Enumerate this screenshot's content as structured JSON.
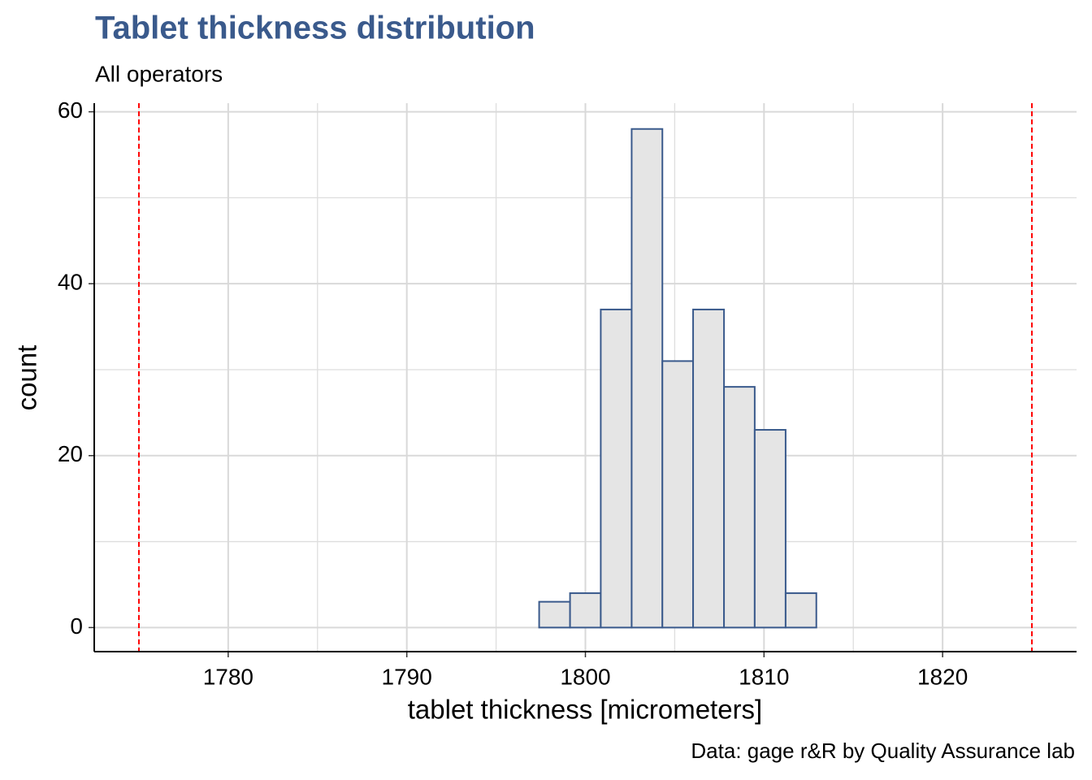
{
  "chart_data": {
    "type": "histogram",
    "title": "Tablet thickness distribution",
    "subtitle": "All operators",
    "x_label": "tablet thickness [micrometers]",
    "y_label": "count",
    "caption": "Data: gage r&R by Quality Assurance lab",
    "bins": [
      1775,
      1776.72,
      1778.45,
      1780.17,
      1781.9,
      1783.62,
      1785.34,
      1787.07,
      1788.79,
      1790.52,
      1792.24,
      1793.97,
      1795.69,
      1797.41,
      1799.14,
      1800.86,
      1802.59,
      1804.31,
      1806.03,
      1807.76,
      1809.48,
      1811.21,
      1812.93,
      1814.66,
      1816.38,
      1818.1,
      1819.83,
      1821.55,
      1823.28,
      1825
    ],
    "values": [
      0,
      0,
      0,
      0,
      0,
      0,
      0,
      0,
      0,
      0,
      0,
      0,
      0,
      3,
      4,
      37,
      58,
      31,
      37,
      28,
      23,
      4,
      0,
      0,
      0,
      0,
      0,
      0,
      0
    ],
    "color": "#e5e5e5",
    "edge_color": "#3a5a8c",
    "title_color": "#3a5a8c",
    "vlines": [
      1775,
      1825
    ],
    "vline_color": "#ff0000",
    "xlim": [
      1772.5,
      1827.5
    ],
    "ylim": [
      -2.8,
      61
    ],
    "xticks": [
      1780,
      1790,
      1800,
      1810,
      1820
    ],
    "yticks": [
      0,
      20,
      40,
      60
    ],
    "xminor": [
      1775,
      1785,
      1795,
      1805,
      1815,
      1825
    ],
    "yminor": [
      10,
      30,
      50
    ],
    "grid": true
  }
}
